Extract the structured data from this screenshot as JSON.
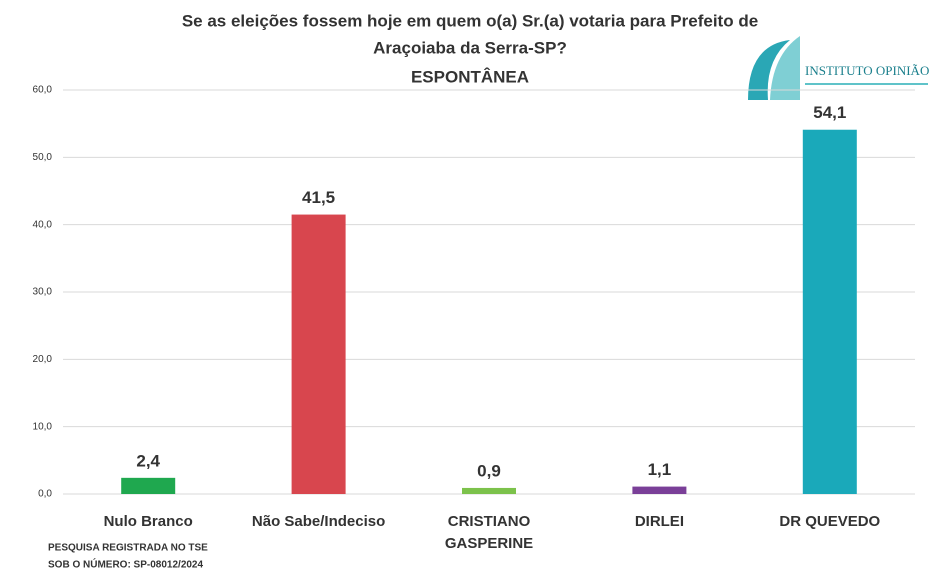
{
  "chart_data": {
    "type": "bar",
    "title": [
      "Se as eleições fossem hoje em quem o(a) Sr.(a) votaria para Prefeito de",
      "Araçoiaba da Serra-SP?",
      "ESPONTÂNEA"
    ],
    "categories": [
      "Nulo Branco",
      "Não Sabe/Indeciso",
      "CRISTIANO GASPERINE",
      "DIRLEI",
      "DR QUEVEDO"
    ],
    "values": [
      2.4,
      41.5,
      0.9,
      1.1,
      54.1
    ],
    "value_labels": [
      "2,4",
      "41,5",
      "0,9",
      "1,1",
      "54,1"
    ],
    "colors": [
      "#1fa84f",
      "#d8464e",
      "#7cc24b",
      "#7a3f98",
      "#1aa9ba"
    ],
    "ylim": [
      0,
      60
    ],
    "yticks": [
      {
        "value": 0,
        "label": "0,0"
      },
      {
        "value": 10,
        "label": "10,0"
      },
      {
        "value": 20,
        "label": "20,0"
      },
      {
        "value": 30,
        "label": "30,0"
      },
      {
        "value": 40,
        "label": "40,0"
      },
      {
        "value": 50,
        "label": "50,0"
      },
      {
        "value": 60,
        "label": "60,0"
      }
    ],
    "grid": true,
    "footnote": [
      "PESQUISA REGISTRADA NO TSE",
      "SOB O NÚMERO: SP-08012/2024"
    ],
    "logo": "INSTITUTO OPINIÃO"
  }
}
